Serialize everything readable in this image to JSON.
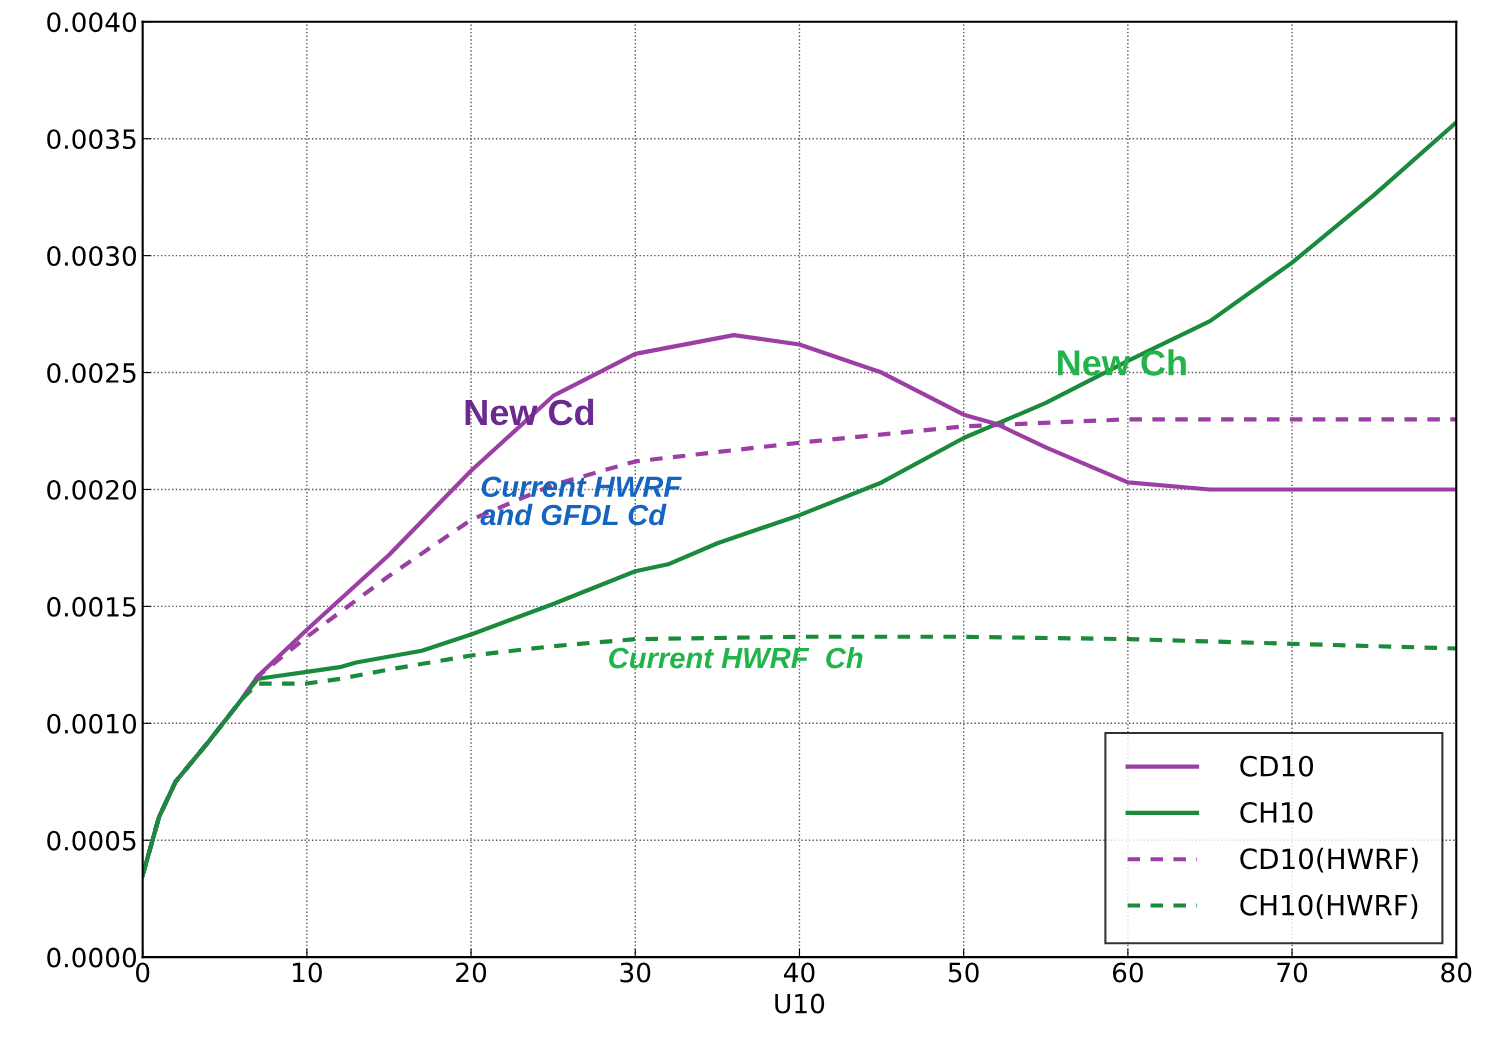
{
  "chart_data": {
    "type": "line",
    "xlabel": "U10",
    "xlim": [
      0,
      80
    ],
    "xticks": [
      0,
      10,
      20,
      30,
      40,
      50,
      60,
      70,
      80
    ],
    "ylim": [
      0,
      0.004
    ],
    "yticks": [
      {
        "value": 0,
        "label": "0.0000"
      },
      {
        "value": 0.0005,
        "label": "0.0005"
      },
      {
        "value": 0.001,
        "label": "0.0010"
      },
      {
        "value": 0.0015,
        "label": "0.0015"
      },
      {
        "value": 0.002,
        "label": "0.0020"
      },
      {
        "value": 0.0025,
        "label": "0.0025"
      },
      {
        "value": 0.003,
        "label": "0.0030"
      },
      {
        "value": 0.0035,
        "label": "0.0035"
      },
      {
        "value": 0.004,
        "label": "0.0040"
      }
    ],
    "grid": true,
    "legend": "bottom right",
    "series": [
      {
        "name": "CD10",
        "color": "#9b3fa5",
        "line_style": "solid",
        "x": [
          0,
          1,
          2,
          4,
          6,
          7,
          10,
          15,
          20,
          25,
          30,
          36,
          40,
          45,
          50,
          52,
          55,
          60,
          65,
          80
        ],
        "values": [
          0.00035,
          0.0006,
          0.00075,
          0.00092,
          0.0011,
          0.0012,
          0.0014,
          0.00172,
          0.00208,
          0.0024,
          0.00258,
          0.00266,
          0.00262,
          0.0025,
          0.00232,
          0.00228,
          0.00218,
          0.00203,
          0.002,
          0.002
        ]
      },
      {
        "name": "CH10",
        "color": "#1a8a3c",
        "line_style": "solid",
        "x": [
          0,
          1,
          2,
          4,
          6,
          7,
          8,
          10,
          12,
          13,
          17,
          20,
          25,
          30,
          32,
          35,
          40,
          45,
          50,
          55,
          60,
          65,
          70,
          75,
          80
        ],
        "values": [
          0.00035,
          0.0006,
          0.00075,
          0.00092,
          0.0011,
          0.00119,
          0.0012,
          0.00122,
          0.00124,
          0.00126,
          0.00131,
          0.00138,
          0.00151,
          0.00165,
          0.00168,
          0.00177,
          0.00189,
          0.00203,
          0.00222,
          0.00237,
          0.00255,
          0.00272,
          0.00297,
          0.00326,
          0.00357
        ]
      },
      {
        "name": "CD10(HWRF)",
        "color": "#9b3fa5",
        "line_style": "dashed",
        "x": [
          0,
          1,
          2,
          4,
          6,
          7,
          10,
          15,
          20,
          25,
          30,
          40,
          50,
          60,
          80
        ],
        "values": [
          0.00035,
          0.0006,
          0.00075,
          0.00092,
          0.0011,
          0.0012,
          0.00137,
          0.00163,
          0.00187,
          0.00202,
          0.00212,
          0.0022,
          0.00227,
          0.0023,
          0.0023
        ]
      },
      {
        "name": "CH10(HWRF)",
        "color": "#1a8a3c",
        "line_style": "dashed",
        "x": [
          0,
          1,
          2,
          4,
          6,
          7,
          10,
          12,
          15,
          20,
          25,
          30,
          40,
          50,
          60,
          70,
          80
        ],
        "values": [
          0.00035,
          0.0006,
          0.00075,
          0.00092,
          0.0011,
          0.00117,
          0.00117,
          0.00119,
          0.00123,
          0.00129,
          0.00133,
          0.00136,
          0.00137,
          0.00137,
          0.00136,
          0.00134,
          0.00132
        ]
      }
    ],
    "annotations": [
      "New Cd",
      "Current HWRF\nand GFDL Cd",
      "New Ch",
      "Current HWRF  Ch"
    ]
  }
}
